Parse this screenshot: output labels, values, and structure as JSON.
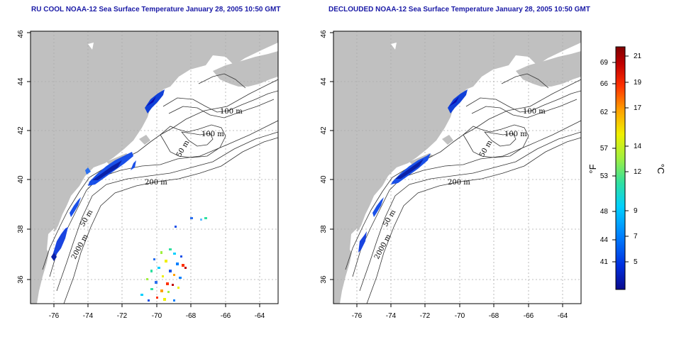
{
  "panels": [
    {
      "id": "left",
      "title": "RU COOL NOAA-12 Sea Surface Temperature January 28, 2005 10:50 GMT",
      "contour_labels": [
        "100 m",
        "100 m",
        "50 m",
        "200 m",
        "50 m",
        "2000 m"
      ]
    },
    {
      "id": "right",
      "title": "DECLOUDED NOAA-12 Sea Surface Temperature January 28, 2005 10:50 GMT",
      "contour_labels": [
        "100 m",
        "100 m",
        "50 m",
        "200 m",
        "50 m",
        "2000 m"
      ]
    }
  ],
  "map": {
    "lon_ticks": [
      "-76",
      "-74",
      "-72",
      "-70",
      "-68",
      "-66",
      "-64"
    ],
    "lat_ticks": [
      "36",
      "38",
      "40",
      "42",
      "44",
      "46"
    ],
    "land_color": "#c0c0c0",
    "grid": "dotted"
  },
  "colorbar": {
    "fahrenheit_unit": "°F",
    "celsius_unit": "°C",
    "fahrenheit_ticks": [
      "69",
      "66",
      "62",
      "57",
      "53",
      "48",
      "44",
      "41"
    ],
    "celsius_ticks": [
      "21",
      "19",
      "17",
      "14",
      "12",
      "9",
      "7",
      "5"
    ],
    "colors": [
      "#0a0a8c",
      "#0030e0",
      "#0080ff",
      "#00d0ff",
      "#30e0a0",
      "#a0f040",
      "#f0f000",
      "#ffa000",
      "#ff3000",
      "#c00000",
      "#800000"
    ]
  }
}
